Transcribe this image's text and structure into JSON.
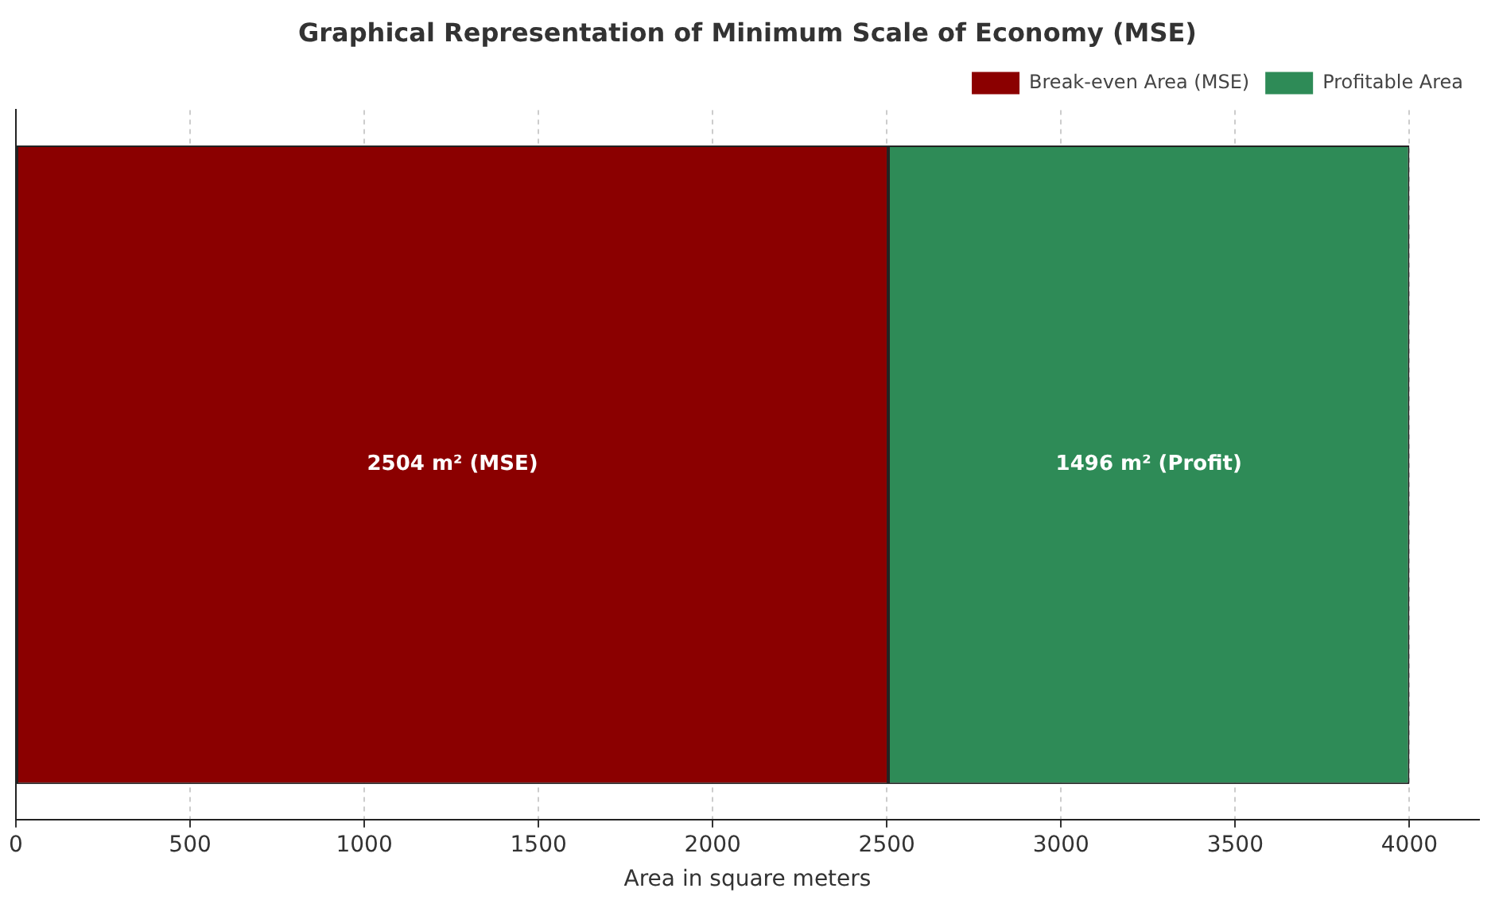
{
  "chart_data": {
    "type": "bar",
    "title": "Graphical Representation of Minimum Scale of Economy (MSE)",
    "xlabel": "Area in square meters",
    "orientation": "horizontal",
    "stacked": true,
    "categories": [
      null
    ],
    "series": [
      {
        "name": "Break-even Area (MSE)",
        "color": "#8b0000",
        "values": [
          2504
        ],
        "value_labels": [
          "2504 m² (MSE)"
        ]
      },
      {
        "name": "Profitable Area",
        "color": "#2e8b57",
        "values": [
          1496
        ],
        "value_labels": [
          "1496 m² (Profit)"
        ]
      }
    ],
    "xlim": [
      0,
      4200
    ],
    "xticks": [
      0,
      500,
      1000,
      1500,
      2000,
      2500,
      3000,
      3500,
      4000
    ],
    "grid": "x",
    "legend": "top right",
    "tick_labels": "x"
  }
}
